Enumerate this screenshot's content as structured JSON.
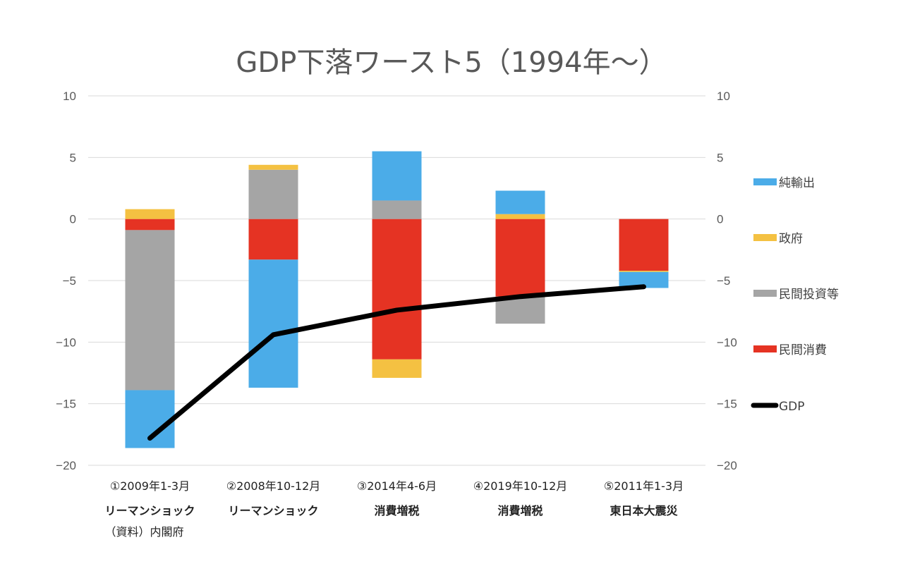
{
  "chart_data": {
    "type": "bar",
    "stacked": true,
    "title": "GDP下落ワースト5（1994年～）",
    "xlabel": "",
    "ylabel": "",
    "ylim": [
      -20,
      10
    ],
    "y_ticks": [
      10,
      5,
      0,
      -5,
      -10,
      -15,
      -20
    ],
    "y_tick_labels": [
      "10",
      "5",
      "0",
      "−5",
      "−10",
      "−15",
      "−20"
    ],
    "secondary_y_ticks": [
      10,
      5,
      0,
      -5,
      -10,
      -15,
      -20
    ],
    "secondary_y_tick_labels": [
      "10",
      "5",
      "0",
      "−5",
      "−10",
      "−15",
      "−20"
    ],
    "grid": true,
    "legend_position": "right",
    "categories": [
      {
        "period": "①2009年1-3月",
        "event": [
          "リーマンショック",
          "（資料）内閣府"
        ]
      },
      {
        "period": "②2008年10-12月",
        "event": [
          "リーマンショック"
        ]
      },
      {
        "period": "③2014年4-6月",
        "event": [
          "消費増税"
        ]
      },
      {
        "period": "④2019年10-12月",
        "event": [
          "消費増税"
        ]
      },
      {
        "period": "⑤2011年1-3月",
        "event": [
          "東日本大震災"
        ]
      }
    ],
    "series": [
      {
        "name": "民間消費",
        "type": "bar",
        "color": "#E53323",
        "values": [
          -0.9,
          -3.3,
          -11.4,
          -6.3,
          -4.2
        ]
      },
      {
        "name": "民間投資等",
        "type": "bar",
        "color": "#A5A5A5",
        "values": [
          -13.0,
          4.0,
          1.5,
          -2.2,
          0.0
        ]
      },
      {
        "name": "政府",
        "type": "bar",
        "color": "#F4C142",
        "values": [
          0.8,
          0.4,
          -1.5,
          0.4,
          -0.1
        ]
      },
      {
        "name": "純輸出",
        "type": "bar",
        "color": "#4BACE8",
        "values": [
          -4.7,
          -10.4,
          4.0,
          1.9,
          -1.3
        ]
      },
      {
        "name": "GDP",
        "type": "line",
        "color": "#000000",
        "values": [
          -17.8,
          -9.4,
          -7.4,
          -6.3,
          -5.5
        ]
      }
    ],
    "legend_order": [
      "純輸出",
      "政府",
      "民間投資等",
      "民間消費",
      "GDP"
    ]
  }
}
